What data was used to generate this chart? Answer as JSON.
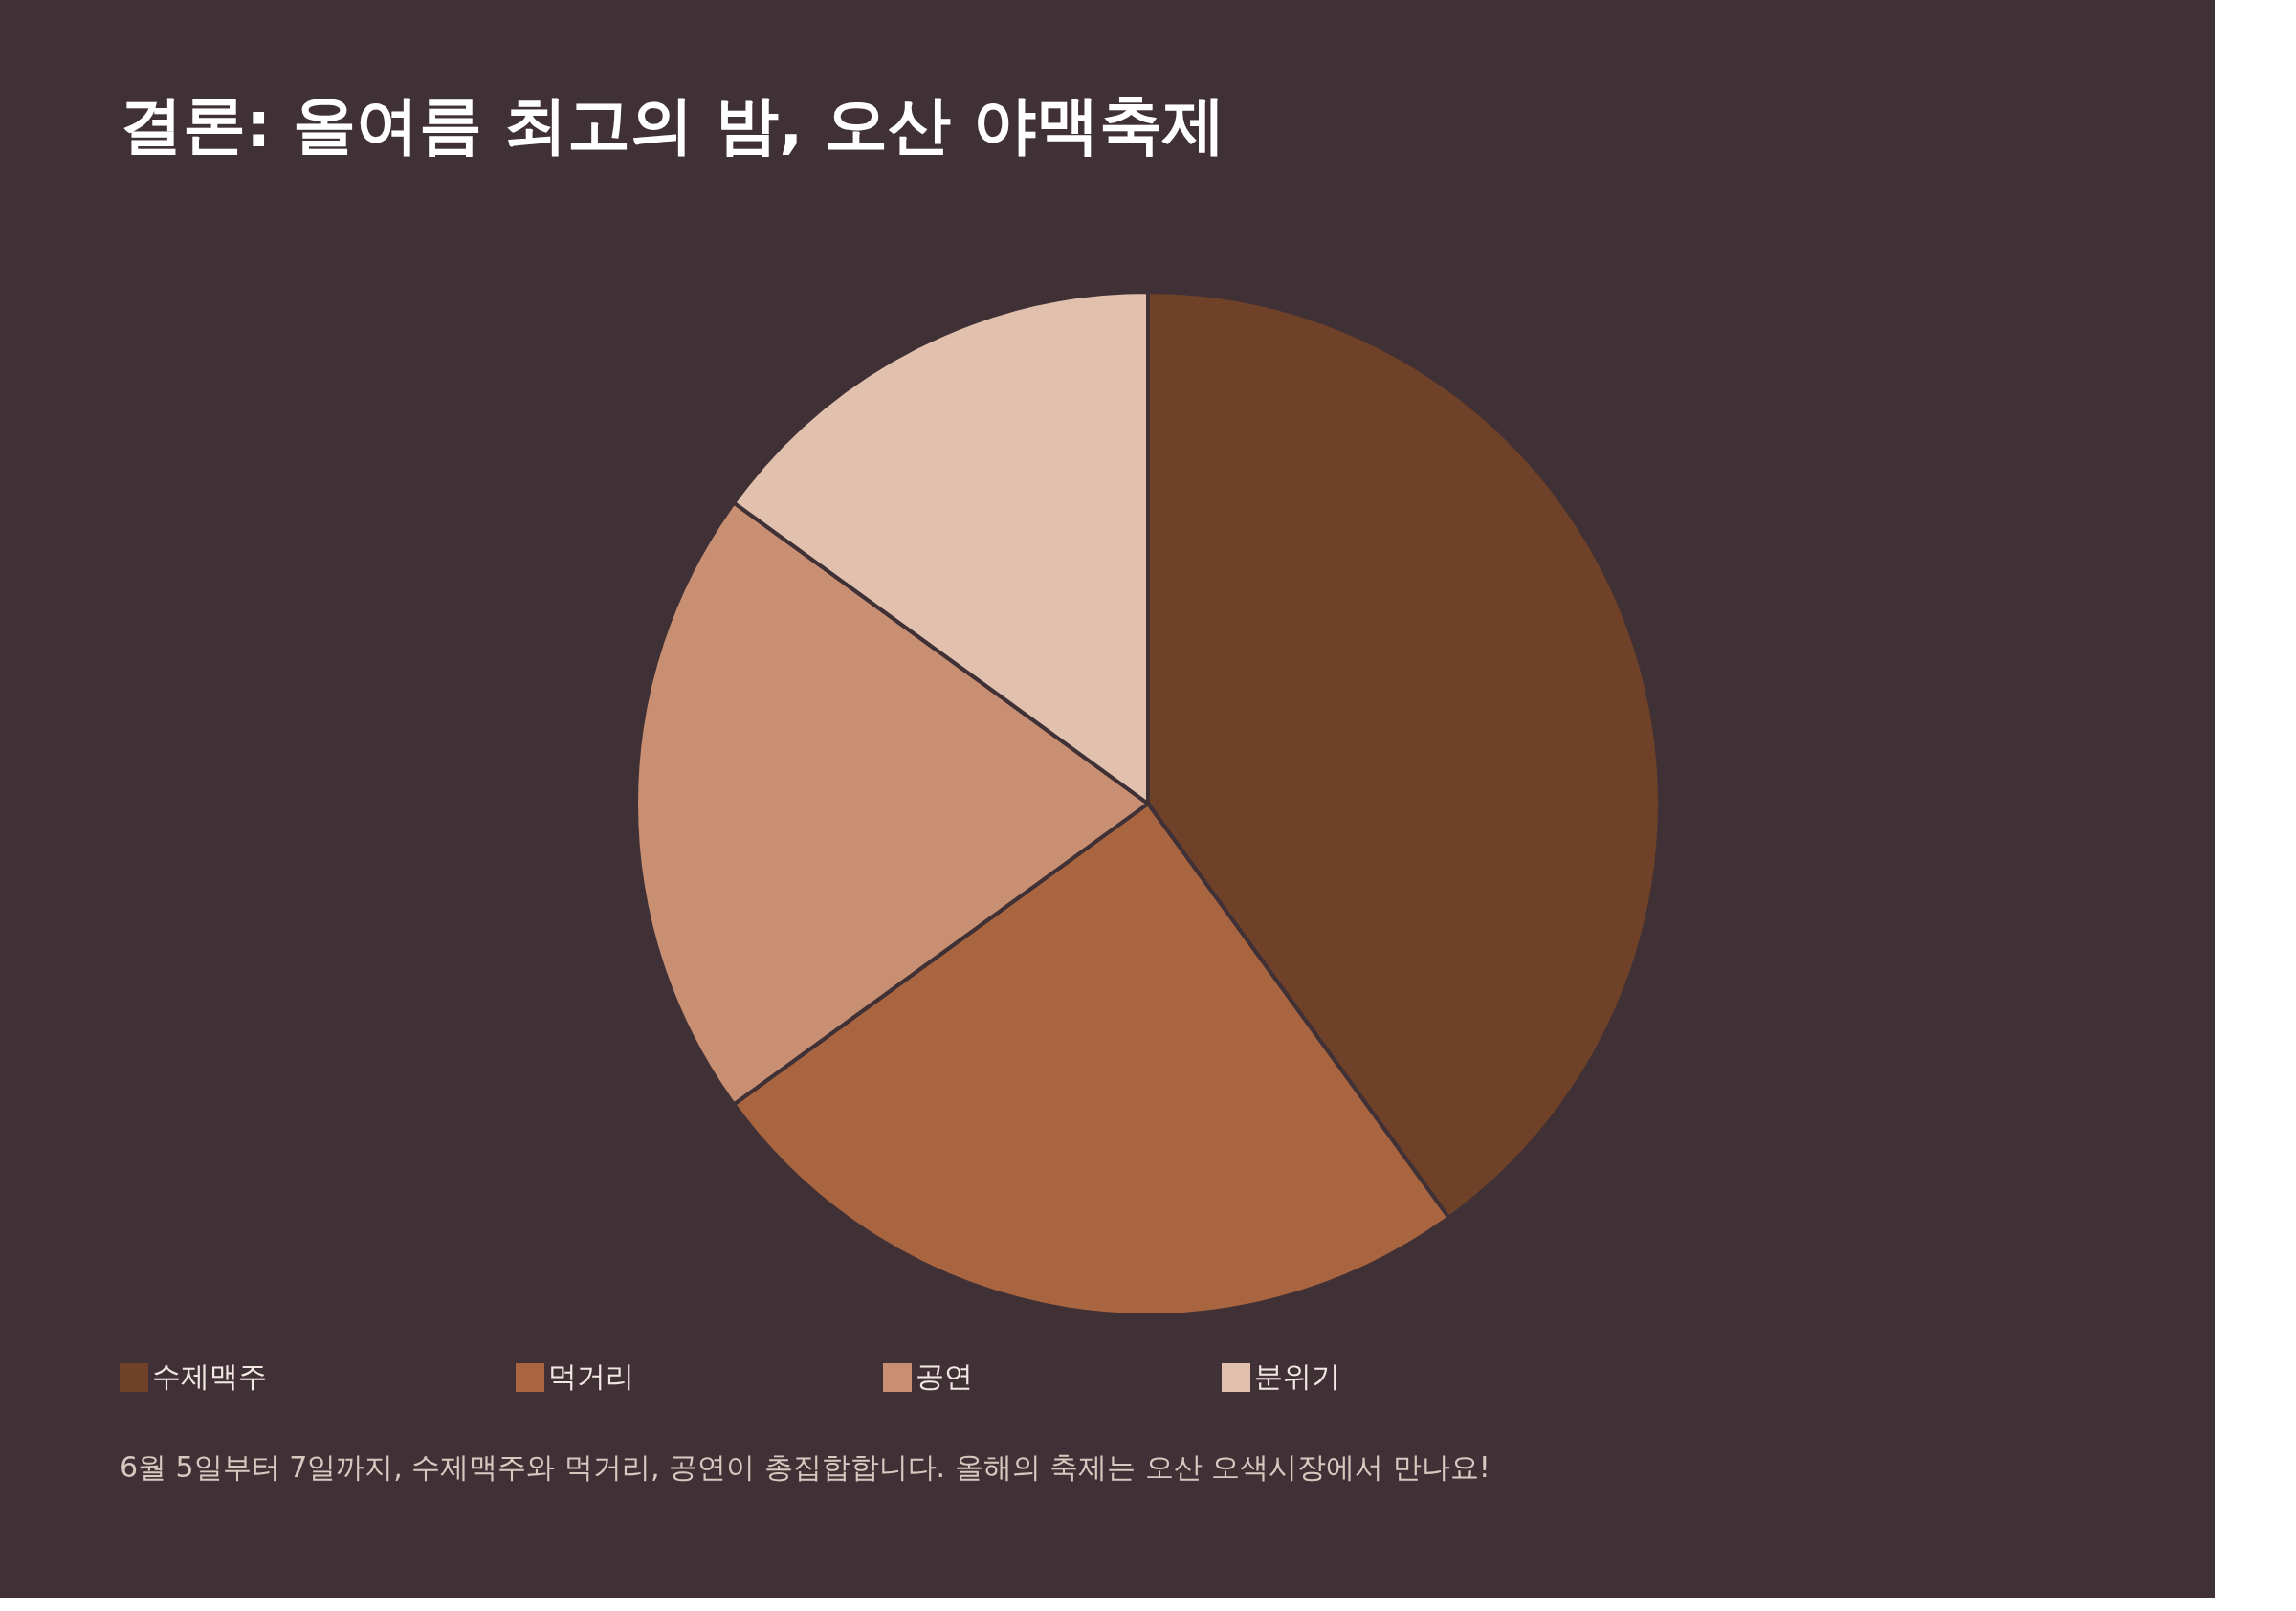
{
  "chart_data": {
    "type": "pie",
    "title": "결론: 올여름 최고의 밤, 오산 야맥축제",
    "categories": [
      "수제맥주",
      "먹거리",
      "공연",
      "분위기"
    ],
    "values": [
      40,
      25,
      20,
      15
    ],
    "colors": [
      "#6f4129",
      "#a96440",
      "#c98f73",
      "#e1c1ae"
    ],
    "legend": "bottom",
    "annotations": [
      "6월 5일부터 7일까지, 수제맥주와 먹거리, 공연이 총집합합니다. 올해의 축제는 오산 오색시장에서 만나요!"
    ]
  }
}
